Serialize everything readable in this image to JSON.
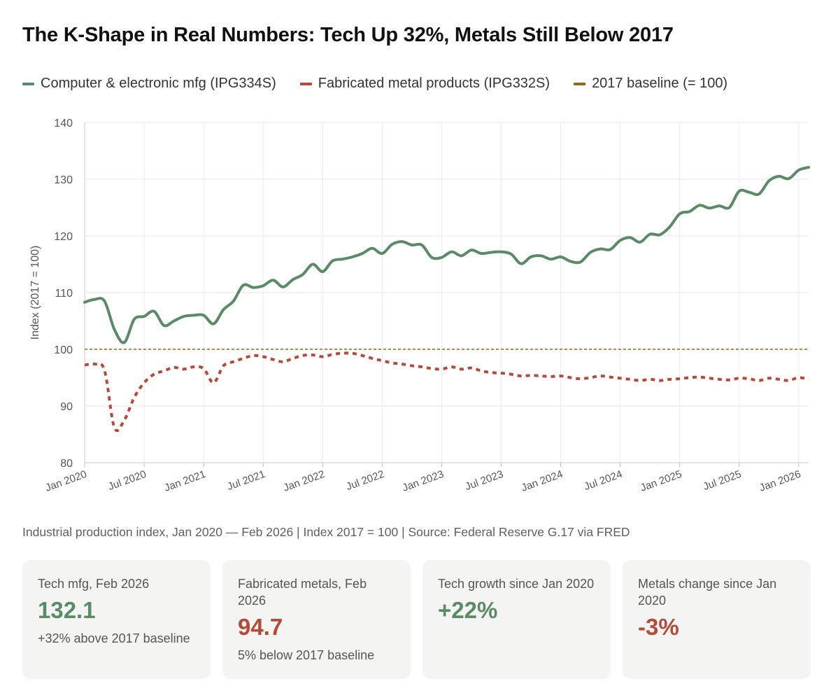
{
  "title": "The K-Shape in Real Numbers: Tech Up 32%, Metals Still Below 2017",
  "legend": [
    {
      "label": "Computer & electronic mfg (IPG334S)",
      "color": "#5a8a66"
    },
    {
      "label": "Fabricated metal products (IPG332S)",
      "color": "#b44a3a"
    },
    {
      "label": "2017 baseline (= 100)",
      "color": "#8c6a1c"
    }
  ],
  "caption": "Industrial production index, Jan 2020 — Feb 2026  |  Index 2017 = 100  |  Source: Federal Reserve G.17 via FRED",
  "cards": [
    {
      "label": "Tech mfg, Feb 2026",
      "value": "132.1",
      "sub": "+32% above 2017 baseline",
      "color": "#5a8a66"
    },
    {
      "label": "Fabricated metals, Feb 2026",
      "value": "94.7",
      "sub": "5% below 2017 baseline",
      "color": "#b44a3a"
    },
    {
      "label": "Tech growth since Jan 2020",
      "value": "+22%",
      "sub": "",
      "color": "#5a8a66"
    },
    {
      "label": "Metals change since Jan 2020",
      "value": "-3%",
      "sub": "",
      "color": "#b44a3a"
    }
  ],
  "chart_data": {
    "type": "line",
    "ylabel": "Index (2017 = 100)",
    "ylim": [
      80,
      140
    ],
    "yticks": [
      80,
      90,
      100,
      110,
      120,
      130,
      140
    ],
    "xlim": [
      "2020-01",
      "2026-02"
    ],
    "xticks": [
      "Jan 2020",
      "Jul 2020",
      "Jan 2021",
      "Jul 2021",
      "Jan 2022",
      "Jul 2022",
      "Jan 2023",
      "Jul 2023",
      "Jan 2024",
      "Jul 2024",
      "Jan 2025",
      "Jul 2025",
      "Jan 2026"
    ],
    "grid": true,
    "baseline": {
      "name": "2017 baseline (= 100)",
      "value": 100
    },
    "x": [
      "2020-01",
      "2020-02",
      "2020-03",
      "2020-04",
      "2020-05",
      "2020-06",
      "2020-07",
      "2020-08",
      "2020-09",
      "2020-10",
      "2020-11",
      "2020-12",
      "2021-01",
      "2021-02",
      "2021-03",
      "2021-04",
      "2021-05",
      "2021-06",
      "2021-07",
      "2021-08",
      "2021-09",
      "2021-10",
      "2021-11",
      "2021-12",
      "2022-01",
      "2022-02",
      "2022-03",
      "2022-04",
      "2022-05",
      "2022-06",
      "2022-07",
      "2022-08",
      "2022-09",
      "2022-10",
      "2022-11",
      "2022-12",
      "2023-01",
      "2023-02",
      "2023-03",
      "2023-04",
      "2023-05",
      "2023-06",
      "2023-07",
      "2023-08",
      "2023-09",
      "2023-10",
      "2023-11",
      "2023-12",
      "2024-01",
      "2024-02",
      "2024-03",
      "2024-04",
      "2024-05",
      "2024-06",
      "2024-07",
      "2024-08",
      "2024-09",
      "2024-10",
      "2024-11",
      "2024-12",
      "2025-01",
      "2025-02",
      "2025-03",
      "2025-04",
      "2025-05",
      "2025-06",
      "2025-07",
      "2025-08",
      "2025-09",
      "2025-10",
      "2025-11",
      "2025-12",
      "2026-01",
      "2026-02"
    ],
    "series": [
      {
        "name": "Computer & electronic mfg (IPG334S)",
        "color": "#5a8a66",
        "style": "solid",
        "values": [
          108.3,
          108.8,
          108.5,
          103.5,
          101.2,
          105.3,
          105.8,
          106.7,
          104.2,
          105.0,
          105.8,
          106.0,
          106.0,
          104.5,
          107.0,
          108.5,
          111.3,
          110.9,
          111.2,
          112.2,
          111.0,
          112.3,
          113.2,
          115.0,
          113.7,
          115.6,
          115.9,
          116.3,
          116.9,
          117.8,
          116.9,
          118.5,
          119.0,
          118.4,
          118.4,
          116.2,
          116.2,
          117.2,
          116.5,
          117.5,
          116.9,
          117.1,
          117.2,
          116.8,
          115.1,
          116.3,
          116.5,
          115.9,
          116.3,
          115.5,
          115.4,
          117.1,
          117.7,
          117.6,
          119.2,
          119.7,
          118.9,
          120.3,
          120.2,
          121.6,
          123.9,
          124.3,
          125.4,
          124.9,
          125.3,
          125.0,
          127.9,
          127.7,
          127.4,
          129.7,
          130.5,
          130.1,
          131.6,
          132.1
        ]
      },
      {
        "name": "Fabricated metal products (IPG332S)",
        "color": "#b44a3a",
        "style": "dashed",
        "values": [
          97.2,
          97.4,
          96.3,
          86.2,
          87.5,
          91.5,
          94.1,
          95.6,
          96.2,
          96.8,
          96.5,
          96.9,
          96.6,
          94.1,
          97.1,
          97.8,
          98.4,
          98.9,
          98.7,
          98.2,
          97.8,
          98.4,
          98.9,
          99.0,
          98.7,
          99.1,
          99.3,
          99.3,
          98.9,
          98.4,
          98.0,
          97.6,
          97.4,
          97.1,
          96.9,
          96.6,
          96.5,
          96.9,
          96.5,
          96.7,
          96.2,
          95.9,
          95.8,
          95.6,
          95.3,
          95.4,
          95.3,
          95.2,
          95.3,
          95.0,
          94.8,
          95.0,
          95.3,
          95.1,
          94.9,
          94.7,
          94.5,
          94.7,
          94.5,
          94.7,
          94.8,
          95.0,
          95.1,
          94.9,
          94.7,
          94.6,
          94.9,
          94.8,
          94.5,
          94.9,
          94.7,
          94.5,
          95.0,
          94.7
        ]
      }
    ]
  }
}
